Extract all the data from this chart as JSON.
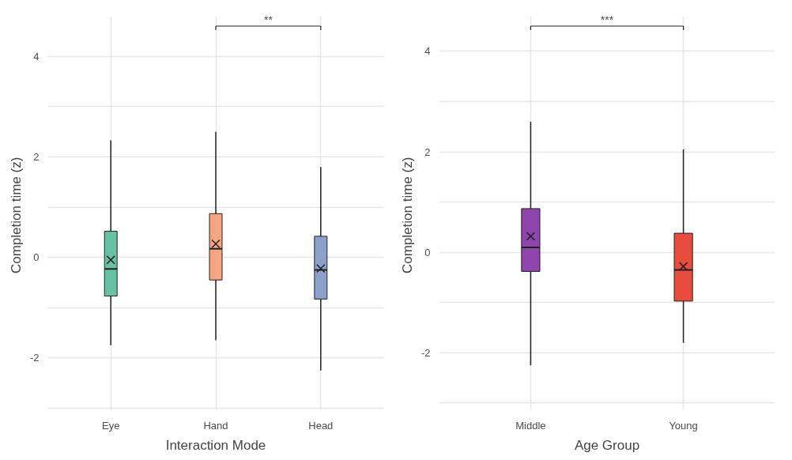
{
  "chart_data": [
    {
      "type": "box",
      "xlabel": "Interaction Mode",
      "ylabel": "Completion  time (z)",
      "categories": [
        "Eye",
        "Hand",
        "Head"
      ],
      "colors": [
        "#66c2a5",
        "#f4a582",
        "#8da0cb"
      ],
      "ylim": [
        -3.05,
        4.8
      ],
      "yticks": [
        {
          "value": -3,
          "label": null
        },
        -2,
        {
          "value": -1,
          "label": null
        },
        0,
        {
          "value": 1,
          "label": null
        },
        2,
        {
          "value": 3,
          "label": null
        },
        4
      ],
      "grid": true,
      "annotations": [
        "**"
      ],
      "boxes": [
        {
          "low": -1.75,
          "q1": -0.77,
          "median": -0.23,
          "q3": 0.52,
          "high": 2.33,
          "mean": -0.05
        },
        {
          "low": -1.65,
          "q1": -0.45,
          "median": 0.17,
          "q3": 0.87,
          "high": 2.5,
          "mean": 0.27
        },
        {
          "low": -2.25,
          "q1": -0.83,
          "median": -0.25,
          "q3": 0.42,
          "high": 1.8,
          "mean": -0.22
        }
      ]
    },
    {
      "type": "box",
      "xlabel": "Age Group",
      "ylabel": "Completion  time (z)",
      "categories": [
        "Middle",
        "Young"
      ],
      "colors": [
        "#8e44ad",
        "#e74c3c"
      ],
      "ylim": [
        -3.15,
        4.7
      ],
      "yticks": [
        {
          "value": -3,
          "label": null
        },
        -2,
        {
          "value": -1,
          "label": null
        },
        0,
        {
          "value": 1,
          "label": null
        },
        2,
        {
          "value": 3,
          "label": null
        },
        4
      ],
      "grid": true,
      "annotations": [
        "***"
      ],
      "boxes": [
        {
          "low": -2.25,
          "q1": -0.38,
          "median": 0.1,
          "q3": 0.87,
          "high": 2.6,
          "mean": 0.32
        },
        {
          "low": -1.8,
          "q1": -0.97,
          "median": -0.35,
          "q3": 0.38,
          "high": 2.05,
          "mean": -0.28
        }
      ]
    }
  ]
}
